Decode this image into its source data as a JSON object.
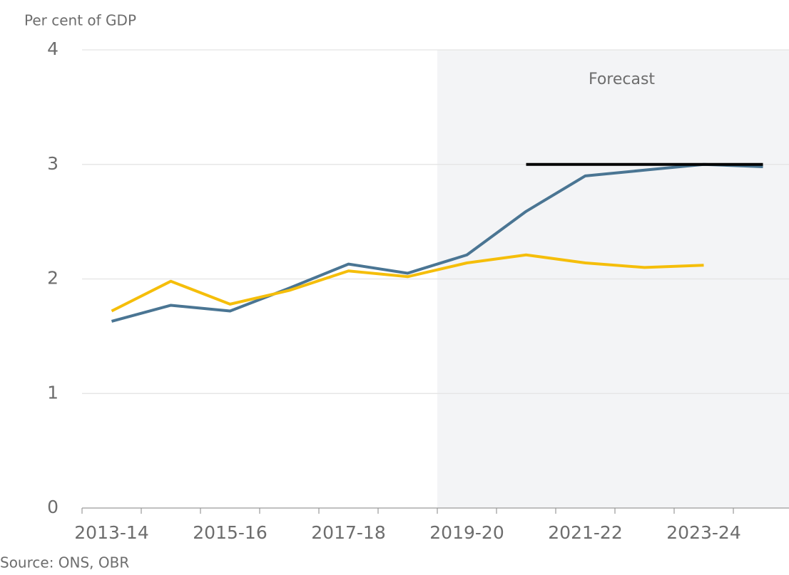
{
  "chart_data": {
    "type": "line",
    "y_axis_label": "Per cent of GDP",
    "source": "Source: ONS, OBR",
    "annotation": {
      "text": "Forecast",
      "from": "2019-20"
    },
    "categories": [
      "2013-14",
      null,
      "2015-16",
      null,
      "2017-18",
      null,
      "2019-20",
      null,
      "2021-22",
      null,
      "2023-24",
      null
    ],
    "series": [
      {
        "color": "#4a7593",
        "values": [
          1.63,
          1.77,
          1.72,
          1.92,
          2.13,
          2.05,
          2.21,
          2.59,
          2.9,
          2.95,
          3.0,
          2.98
        ]
      },
      {
        "color": "#f5be0a",
        "values": [
          1.72,
          1.98,
          1.78,
          1.9,
          2.07,
          2.02,
          2.14,
          2.21,
          2.14,
          2.1,
          2.12,
          null
        ]
      },
      {
        "color": "#000000",
        "values": [
          null,
          null,
          null,
          null,
          null,
          null,
          null,
          3.0,
          3.0,
          3.0,
          3.0,
          3.0
        ]
      }
    ],
    "ylim": [
      0,
      4
    ],
    "yticks": [
      0,
      1,
      2,
      3,
      4
    ],
    "grid": true
  }
}
